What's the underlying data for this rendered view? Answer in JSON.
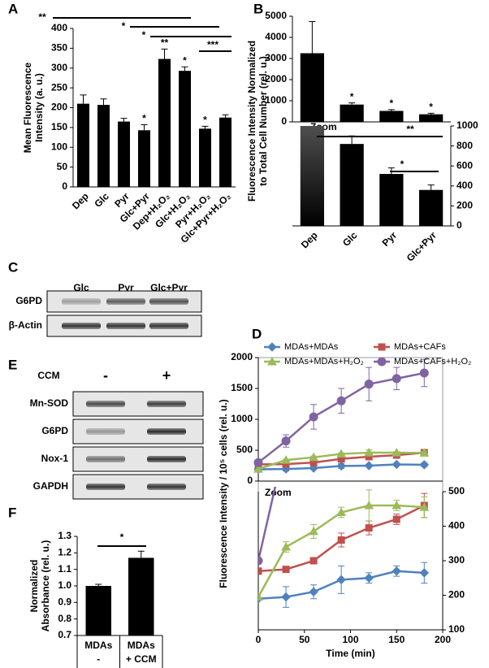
{
  "chart_data": [
    {
      "type": "bar",
      "panel": "A",
      "ylabel": [
        "Mean Fluorescence",
        "Intensity (a. u.)"
      ],
      "categories": [
        "Dep",
        "Glc",
        "Pyr",
        "Glc+Pyr",
        "Dep+H₂O₂",
        "Glc+H₂O₂",
        "Pyr+H₂O₂",
        "Glc+Pyr+H₂O₂"
      ],
      "values": [
        210,
        207,
        165,
        143,
        323,
        293,
        147,
        175
      ],
      "errors": [
        22,
        15,
        8,
        14,
        25,
        10,
        6,
        7
      ],
      "stars": [
        null,
        null,
        null,
        "*",
        "**",
        "*",
        "*",
        null
      ],
      "color": "#000000",
      "ylim": [
        0,
        400
      ],
      "yticks": [
        0,
        50,
        100,
        150,
        200,
        250,
        300,
        350,
        400
      ],
      "brackets": [
        {
          "text": "**"
        },
        {
          "text": "*"
        },
        {
          "text": "*"
        },
        {
          "text": "***"
        }
      ]
    },
    {
      "type": "bar",
      "panel": "B",
      "ylabel": [
        "Fluorescence Intensity Normalized",
        "to Total Cell Number (rel. u.)"
      ],
      "categories": [
        "Dep",
        "Glc",
        "Pyr",
        "Glc+Pyr"
      ],
      "values": [
        3250,
        820,
        520,
        360
      ],
      "errors": [
        1500,
        80,
        60,
        50
      ],
      "stars": [
        null,
        "*",
        "*",
        "*"
      ],
      "color": "#000000",
      "ylim": [
        0,
        5000
      ],
      "yticks": [
        0,
        1000,
        2000,
        3000,
        4000,
        5000
      ],
      "zoom": {
        "label": "Zoom",
        "ylim": [
          0,
          1000
        ],
        "yticks": [
          0,
          200,
          400,
          600,
          800,
          1000
        ]
      },
      "brackets": [
        {
          "text": "**"
        },
        {
          "text": "*"
        }
      ]
    },
    {
      "type": "line",
      "panel": "D",
      "xlabel": "Time (min)",
      "ylabel": "Fluorescence Intensity / 10⁵ cells (rel. u.)",
      "x": [
        0,
        30,
        60,
        90,
        120,
        150,
        180
      ],
      "series": [
        {
          "name": "MDAs+MDAs",
          "color": "#4f81bd",
          "values": [
            190,
            195,
            210,
            245,
            250,
            270,
            265
          ],
          "errors": [
            0,
            30,
            20,
            40,
            15,
            15,
            30
          ]
        },
        {
          "name": "MDAs+CAFs",
          "color": "#c0504d",
          "values": [
            270,
            275,
            300,
            360,
            395,
            420,
            460
          ],
          "errors": [
            0,
            8,
            8,
            20,
            20,
            15,
            35
          ]
        },
        {
          "name": "MDAs+MDAs+H₂O₂",
          "color": "#9bbb59",
          "values": [
            195,
            340,
            385,
            440,
            460,
            460,
            455
          ],
          "errors": [
            0,
            15,
            20,
            15,
            45,
            15,
            30
          ]
        },
        {
          "name": "MDAs+CAFs+H₂O₂",
          "color": "#8064a2",
          "values": [
            300,
            650,
            1040,
            1300,
            1570,
            1660,
            1750
          ],
          "errors": [
            0,
            100,
            200,
            200,
            270,
            180,
            220
          ]
        }
      ],
      "xlim": [
        0,
        200
      ],
      "xticks": [
        0,
        50,
        100,
        150,
        200
      ],
      "ylim": [
        0,
        2000
      ],
      "yticks": [
        0,
        500,
        1000,
        1500,
        2000
      ],
      "zoom": {
        "label": "Zoom",
        "ylim": [
          100,
          500
        ],
        "yticks": [
          100,
          200,
          300,
          400,
          500
        ]
      }
    },
    {
      "type": "bar",
      "panel": "F",
      "ylabel": [
        "Normalized",
        "Absorbance (rel. u.)"
      ],
      "categories": [
        "MDAs",
        "MDAs"
      ],
      "sublabels": [
        "-",
        "+ CCM"
      ],
      "values": [
        1.0,
        1.17
      ],
      "errors": [
        0.01,
        0.04
      ],
      "color": "#000000",
      "ylim": [
        0.7,
        1.3
      ],
      "yticks": [
        0.7,
        0.8,
        0.9,
        {
          "value": 1,
          "label": "1.0"
        },
        1.1,
        1.2,
        1.3
      ],
      "brackets": [
        {
          "text": "*"
        }
      ]
    }
  ],
  "blots": [
    {
      "panel": "C",
      "lanes": [
        "Glc",
        "Pyr",
        "Glc+Pyr"
      ],
      "rows": [
        "G6PD",
        "β-Actin"
      ]
    },
    {
      "panel": "E",
      "header": "CCM",
      "lanes": [
        "-",
        "+"
      ],
      "rows": [
        "Mn-SOD",
        "G6PD",
        "Nox-1",
        "GAPDH"
      ]
    }
  ]
}
